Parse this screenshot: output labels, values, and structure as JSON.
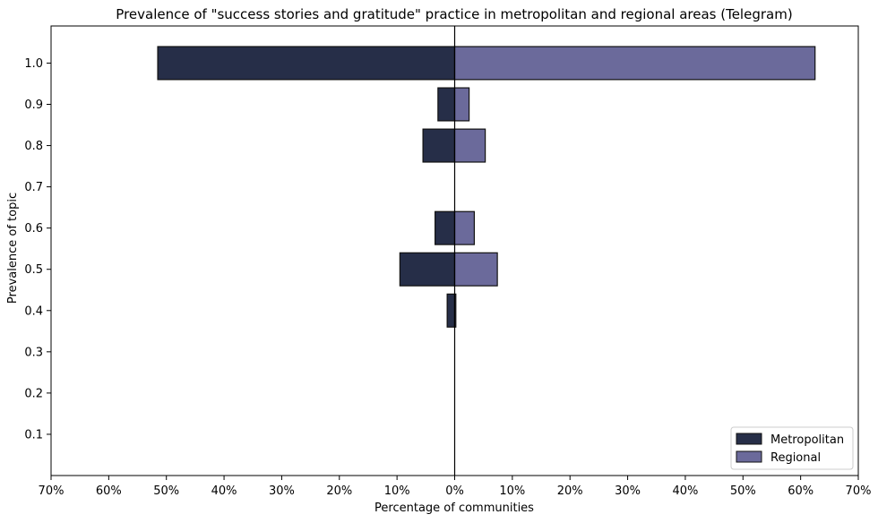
{
  "chart_data": {
    "type": "bar",
    "orientation": "horizontal-butterfly",
    "title": "Prevalence of \"success stories and gratitude\" practice in metropolitan and regional areas (Telegram)",
    "xlabel": "Percentage of communities",
    "ylabel": "Prevalence of topic",
    "xlim": [
      -70,
      70
    ],
    "ylim": [
      0.0,
      1.09
    ],
    "x_ticks": [
      -70,
      -60,
      -50,
      -40,
      -30,
      -20,
      -10,
      0,
      10,
      20,
      30,
      40,
      50,
      60,
      70
    ],
    "x_tick_labels": [
      "70%",
      "60%",
      "50%",
      "40%",
      "30%",
      "20%",
      "10%",
      "0%",
      "10%",
      "20%",
      "30%",
      "40%",
      "50%",
      "60%",
      "70%"
    ],
    "y_ticks": [
      0.1,
      0.2,
      0.3,
      0.4,
      0.5,
      0.6,
      0.7,
      0.8,
      0.9,
      1.0
    ],
    "y_tick_labels": [
      "0.1",
      "0.2",
      "0.3",
      "0.4",
      "0.5",
      "0.6",
      "0.7",
      "0.8",
      "0.9",
      "1.0"
    ],
    "categories": [
      0.1,
      0.2,
      0.3,
      0.4,
      0.5,
      0.6,
      0.7,
      0.8,
      0.9,
      1.0
    ],
    "series": [
      {
        "name": "Metropolitan",
        "side": "left",
        "color": "#262e48",
        "values": [
          0,
          0,
          0,
          1.3,
          9.5,
          3.4,
          0,
          5.5,
          2.9,
          51.5
        ]
      },
      {
        "name": "Regional",
        "side": "right",
        "color": "#6b6a9b",
        "values": [
          0,
          0,
          0,
          0.2,
          7.4,
          3.4,
          0,
          5.3,
          2.5,
          62.5
        ]
      }
    ],
    "legend_position": "bottom-right",
    "grid": false
  }
}
